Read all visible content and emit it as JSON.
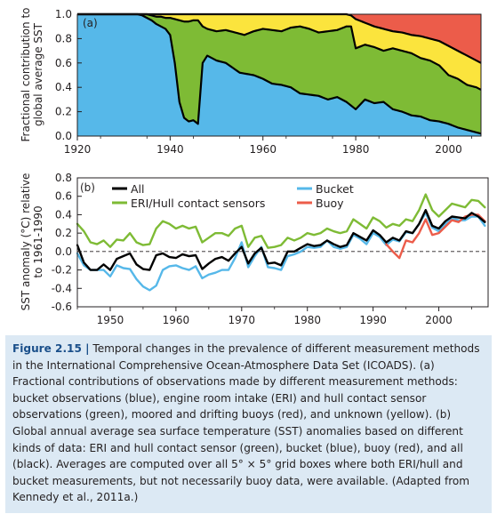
{
  "chart_data": [
    {
      "type": "area",
      "panel_label": "(a)",
      "ylabel_lines": [
        "Fractional contribution to",
        "global average SST"
      ],
      "xlim": [
        1920,
        2007
      ],
      "ylim": [
        0,
        1
      ],
      "x_ticks": [
        "1920",
        "1940",
        "1960",
        "1980",
        "2000"
      ],
      "y_ticks": [
        "0.0",
        "0.2",
        "0.4",
        "0.6",
        "0.8",
        "1.0"
      ],
      "grid": false,
      "legend": "none",
      "colors": {
        "bucket": "#56b8e9",
        "eri_hull": "#7ebb35",
        "unknown": "#fbe43d",
        "buoy": "#ec5c4a",
        "outline": "#000000"
      },
      "series": [
        {
          "name": "bucket",
          "x": [
            1920,
            1926,
            1930,
            1933,
            1934,
            1935,
            1936,
            1937,
            1938,
            1939,
            1940,
            1941,
            1942,
            1943,
            1944,
            1945,
            1946,
            1947,
            1948,
            1949,
            1950,
            1952,
            1955,
            1958,
            1960,
            1962,
            1964,
            1966,
            1968,
            1970,
            1972,
            1974,
            1976,
            1978,
            1980,
            1982,
            1984,
            1986,
            1988,
            1990,
            1992,
            1994,
            1996,
            1998,
            2000,
            2002,
            2004,
            2006,
            2007
          ],
          "values": [
            1.0,
            1.0,
            1.0,
            1.0,
            0.99,
            0.97,
            0.95,
            0.92,
            0.9,
            0.88,
            0.83,
            0.6,
            0.28,
            0.15,
            0.12,
            0.13,
            0.1,
            0.6,
            0.66,
            0.64,
            0.62,
            0.6,
            0.52,
            0.5,
            0.47,
            0.43,
            0.42,
            0.4,
            0.35,
            0.34,
            0.33,
            0.3,
            0.32,
            0.28,
            0.22,
            0.3,
            0.27,
            0.28,
            0.22,
            0.2,
            0.17,
            0.16,
            0.13,
            0.12,
            0.1,
            0.07,
            0.05,
            0.03,
            0.02
          ]
        },
        {
          "name": "bucket_plus_eri_hull",
          "x": [
            1920,
            1926,
            1930,
            1933,
            1934,
            1935,
            1936,
            1937,
            1938,
            1939,
            1940,
            1941,
            1942,
            1943,
            1944,
            1945,
            1946,
            1947,
            1948,
            1950,
            1952,
            1954,
            1956,
            1958,
            1960,
            1962,
            1964,
            1966,
            1968,
            1970,
            1972,
            1974,
            1976,
            1978,
            1979,
            1980,
            1982,
            1984,
            1986,
            1988,
            1990,
            1992,
            1994,
            1996,
            1998,
            2000,
            2002,
            2004,
            2006,
            2007
          ],
          "values": [
            1.0,
            1.0,
            1.0,
            1.0,
            1.0,
            1.0,
            0.99,
            0.98,
            0.98,
            0.97,
            0.97,
            0.96,
            0.95,
            0.94,
            0.94,
            0.95,
            0.95,
            0.9,
            0.88,
            0.86,
            0.87,
            0.85,
            0.83,
            0.86,
            0.88,
            0.87,
            0.86,
            0.89,
            0.9,
            0.88,
            0.85,
            0.86,
            0.87,
            0.9,
            0.9,
            0.72,
            0.75,
            0.73,
            0.7,
            0.72,
            0.7,
            0.68,
            0.64,
            0.62,
            0.58,
            0.5,
            0.47,
            0.42,
            0.4,
            0.38
          ]
        },
        {
          "name": "non_buoy_total",
          "x": [
            1920,
            1978,
            1979,
            1980,
            1982,
            1984,
            1986,
            1988,
            1990,
            1992,
            1994,
            1996,
            1998,
            2000,
            2002,
            2004,
            2006,
            2007
          ],
          "values": [
            1.0,
            1.0,
            0.99,
            0.96,
            0.93,
            0.9,
            0.88,
            0.86,
            0.85,
            0.83,
            0.82,
            0.8,
            0.78,
            0.74,
            0.7,
            0.66,
            0.62,
            0.6
          ]
        }
      ]
    },
    {
      "type": "line",
      "panel_label": "(b)",
      "ylabel_lines": [
        "SST anomaly (°C) relative",
        "to 1961-1990"
      ],
      "xlim": [
        1945,
        2007.5
      ],
      "ylim": [
        -0.6,
        0.8
      ],
      "x_ticks": [
        "1950",
        "1960",
        "1970",
        "1980",
        "1990",
        "2000"
      ],
      "y_ticks": [
        "0.8",
        "0.6",
        "0.4",
        "0.2",
        "0.0",
        "-0.2",
        "-0.4",
        "-0.6"
      ],
      "grid": false,
      "legend": "top",
      "years": [
        1945,
        1946,
        1947,
        1948,
        1949,
        1950,
        1951,
        1952,
        1953,
        1954,
        1955,
        1956,
        1957,
        1958,
        1959,
        1960,
        1961,
        1962,
        1963,
        1964,
        1965,
        1966,
        1967,
        1968,
        1969,
        1970,
        1971,
        1972,
        1973,
        1974,
        1975,
        1976,
        1977,
        1978,
        1979,
        1980,
        1981,
        1982,
        1983,
        1984,
        1985,
        1986,
        1987,
        1988,
        1989,
        1990,
        1991,
        1992,
        1993,
        1994,
        1995,
        1996,
        1997,
        1998,
        1999,
        2000,
        2001,
        2002,
        2003,
        2004,
        2005,
        2006,
        2007
      ],
      "series": [
        {
          "name": "All",
          "color": "#000000",
          "values": [
            0.07,
            -0.12,
            -0.2,
            -0.2,
            -0.14,
            -0.2,
            -0.08,
            -0.05,
            -0.02,
            -0.14,
            -0.19,
            -0.2,
            -0.04,
            -0.02,
            -0.06,
            -0.07,
            -0.03,
            -0.05,
            -0.04,
            -0.19,
            -0.13,
            -0.08,
            -0.06,
            -0.1,
            -0.02,
            0.05,
            -0.13,
            -0.02,
            0.04,
            -0.13,
            -0.12,
            -0.15,
            0.0,
            0.0,
            0.04,
            0.08,
            0.06,
            0.07,
            0.12,
            0.08,
            0.05,
            0.07,
            0.2,
            0.16,
            0.12,
            0.23,
            0.18,
            0.1,
            0.15,
            0.12,
            0.22,
            0.2,
            0.3,
            0.45,
            0.28,
            0.25,
            0.33,
            0.38,
            0.37,
            0.36,
            0.42,
            0.38,
            0.32
          ]
        },
        {
          "name": "Bucket",
          "color": "#56b8e9",
          "values": [
            -0.02,
            -0.15,
            -0.2,
            -0.2,
            -0.2,
            -0.27,
            -0.15,
            -0.18,
            -0.19,
            -0.3,
            -0.38,
            -0.42,
            -0.37,
            -0.2,
            -0.16,
            -0.15,
            -0.18,
            -0.2,
            -0.16,
            -0.29,
            -0.25,
            -0.23,
            -0.2,
            -0.2,
            -0.07,
            0.1,
            -0.17,
            -0.05,
            0.05,
            -0.17,
            -0.18,
            -0.2,
            -0.05,
            -0.03,
            0.0,
            0.05,
            0.04,
            0.05,
            0.12,
            0.05,
            0.03,
            0.05,
            0.18,
            0.14,
            0.08,
            0.2,
            0.16,
            0.07,
            0.13,
            0.11,
            0.21,
            0.2,
            0.3,
            0.42,
            0.26,
            0.22,
            0.3,
            0.36,
            0.34,
            0.34,
            0.38,
            0.38,
            0.28
          ]
        },
        {
          "name": "ERI/Hull contact sensors",
          "color": "#7ebb35",
          "values": [
            0.3,
            0.22,
            0.1,
            0.08,
            0.12,
            0.05,
            0.13,
            0.12,
            0.2,
            0.1,
            0.07,
            0.08,
            0.25,
            0.33,
            0.3,
            0.25,
            0.28,
            0.25,
            0.27,
            0.1,
            0.15,
            0.2,
            0.2,
            0.17,
            0.25,
            0.28,
            0.05,
            0.15,
            0.17,
            0.04,
            0.05,
            0.07,
            0.15,
            0.12,
            0.15,
            0.2,
            0.18,
            0.2,
            0.25,
            0.22,
            0.2,
            0.22,
            0.35,
            0.3,
            0.25,
            0.37,
            0.33,
            0.26,
            0.3,
            0.28,
            0.35,
            0.33,
            0.45,
            0.62,
            0.45,
            0.38,
            0.45,
            0.52,
            0.5,
            0.48,
            0.56,
            0.55,
            0.48
          ]
        },
        {
          "name": "Buoy",
          "color": "#ec5c4a",
          "values": [
            null,
            null,
            null,
            null,
            null,
            null,
            null,
            null,
            null,
            null,
            null,
            null,
            null,
            null,
            null,
            null,
            null,
            null,
            null,
            null,
            null,
            null,
            null,
            null,
            null,
            null,
            null,
            null,
            null,
            null,
            null,
            null,
            null,
            null,
            null,
            null,
            null,
            null,
            null,
            null,
            null,
            null,
            null,
            null,
            null,
            null,
            null,
            0.08,
            0.0,
            -0.07,
            0.12,
            0.1,
            0.2,
            0.35,
            0.18,
            0.2,
            0.27,
            0.34,
            0.32,
            0.38,
            0.4,
            0.4,
            0.33
          ]
        }
      ]
    }
  ],
  "caption": {
    "label": "Figure 2.15 |",
    "text": " Temporal changes in the prevalence of different measurement methods in the International Comprehensive Ocean-Atmosphere Data Set (ICOADS). (a) Fractional contributions of observations made by different measurement methods: bucket observations (blue), engine room intake (ERI) and hull contact sensor observations (green), moored and drifting buoys (red), and unknown (yellow). (b) Global annual average sea surface temperature (SST) anomalies based on different kinds of data: ERI and hull contact sensor (green), bucket (blue), buoy (red), and all (black). Averages are computed over all 5° × 5° grid boxes where both ERI/hull and bucket measurements, but not necessarily buoy data, were available. (Adapted from Kennedy et al., 2011a.)"
  }
}
